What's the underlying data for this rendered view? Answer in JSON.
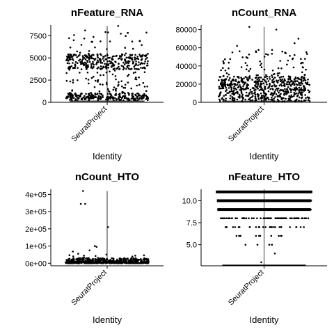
{
  "chart_data": [
    {
      "type": "scatter",
      "title": "nFeature_RNA",
      "xlabel": "Identity",
      "categories": [
        "SeuratProject"
      ],
      "ylim": [
        0,
        8700
      ],
      "yticks": [
        0,
        2500,
        5000,
        7500
      ],
      "ytick_labels": [
        "0",
        "2500",
        "5000",
        "7500"
      ],
      "summary": {
        "min": 60,
        "max": 8600,
        "dense_low": [
          200,
          1000
        ],
        "dense_high": [
          3700,
          5400
        ]
      },
      "seed": 11,
      "generated_points": 650
    },
    {
      "type": "scatter",
      "title": "nCount_RNA",
      "xlabel": "Identity",
      "categories": [
        "SeuratProject"
      ],
      "ylim": [
        0,
        85000
      ],
      "yticks": [
        0,
        20000,
        40000,
        60000,
        80000
      ],
      "ytick_labels": [
        "0",
        "20000",
        "40000",
        "60000",
        "80000"
      ],
      "summary": {
        "min": 500,
        "max": 83000,
        "dense": [
          1000,
          28000
        ]
      },
      "outliers": [
        {
          "x": -0.3,
          "y": 83000
        },
        {
          "x": 0.25,
          "y": 80000
        },
        {
          "x": -0.55,
          "y": 62000
        },
        {
          "x": 0.62,
          "y": 65000
        },
        {
          "x": 0.7,
          "y": 70000
        }
      ],
      "seed": 23,
      "generated_points": 650
    },
    {
      "type": "scatter",
      "title": "nCount_HTO",
      "xlabel": "Identity",
      "categories": [
        "SeuratProject"
      ],
      "ylim": [
        -15000,
        430000
      ],
      "yticks": [
        0,
        100000,
        200000,
        300000,
        400000
      ],
      "ytick_labels": [
        "0e+00",
        "1e+05",
        "2e+05",
        "3e+05",
        "4e+05"
      ],
      "summary": {
        "min": 0,
        "max": 420000,
        "dense": [
          0,
          30000
        ]
      },
      "outliers": [
        {
          "x": -0.55,
          "y": 420000
        },
        {
          "x": -0.6,
          "y": 345000
        },
        {
          "x": -0.5,
          "y": 345000
        },
        {
          "x": 0.02,
          "y": 210000
        },
        {
          "x": -0.28,
          "y": 100000
        },
        {
          "x": -0.24,
          "y": 95000
        },
        {
          "x": -0.4,
          "y": 75000
        },
        {
          "x": -0.78,
          "y": 68000
        }
      ],
      "seed": 37,
      "generated_points": 500
    },
    {
      "type": "scatter",
      "title": "nFeature_HTO",
      "xlabel": "Identity",
      "categories": [
        "SeuratProject"
      ],
      "ylim": [
        2.6,
        11.3
      ],
      "yticks": [
        5.0,
        7.5,
        10.0
      ],
      "ytick_labels": [
        "5.0",
        "7.5",
        "10.0"
      ],
      "levels": [
        {
          "y": 11,
          "density": 1.0,
          "spread": 0.98
        },
        {
          "y": 10,
          "density": 0.95,
          "spread": 0.96
        },
        {
          "y": 9,
          "density": 0.85,
          "spread": 0.95
        },
        {
          "y": 8,
          "density": 0.5,
          "spread": 0.9
        },
        {
          "y": 7,
          "density": 0.2,
          "spread": 0.85
        },
        {
          "y": 6,
          "density": 0.08,
          "spread": 0.75
        },
        {
          "y": 5,
          "density": 0.03,
          "spread": 0.5
        },
        {
          "y": 4,
          "density": 0.01,
          "spread": 0.3
        },
        {
          "y": 3,
          "density": 0.005,
          "spread": 0.2
        }
      ],
      "seed": 53
    }
  ]
}
